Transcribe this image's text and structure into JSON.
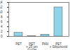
{
  "chart_data": {
    "type": "bar",
    "categories": [
      "PET",
      "PET\n+ 25 µm\nEVOH",
      "PAN",
      "PET\n+ Siliconoxid"
    ],
    "values": [
      1.5,
      0.1,
      0.8,
      12
    ],
    "color": "#8fd3e8",
    "ylim": [
      0,
      14
    ],
    "yticks": [
      0,
      2,
      4,
      6,
      8,
      10,
      12,
      14
    ],
    "grid": false
  }
}
